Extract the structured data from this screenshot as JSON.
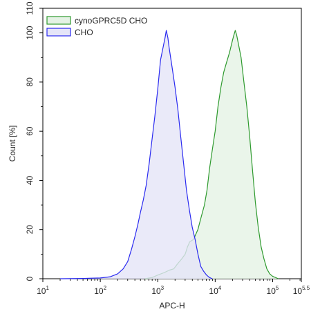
{
  "chart_data": {
    "type": "area",
    "title": "",
    "xlabel": "APC-H",
    "ylabel": "Count [%]",
    "x_scale": "log10",
    "xlim": [
      10,
      316227.77
    ],
    "ylim": [
      0,
      110
    ],
    "x_ticks": [
      {
        "base": "10",
        "exp": "1"
      },
      {
        "base": "10",
        "exp": "2"
      },
      {
        "base": "10",
        "exp": "3"
      },
      {
        "base": "10",
        "exp": "4"
      },
      {
        "base": "10",
        "exp": "5"
      },
      {
        "base": "10",
        "exp": "5.5"
      }
    ],
    "y_ticks": [
      "0",
      "20",
      "40",
      "60",
      "80",
      "100",
      "110"
    ],
    "grid": false,
    "legend_position": "top-left",
    "series": [
      {
        "name": "cynoGPRC5D CHO",
        "color": "#2e9a2e",
        "fill": "#e5f2e5",
        "points": [
          [
            600,
            0
          ],
          [
            800,
            0.5
          ],
          [
            1000,
            1.5
          ],
          [
            1300,
            2.5
          ],
          [
            1600,
            3.5
          ],
          [
            1900,
            4
          ],
          [
            2200,
            6
          ],
          [
            2600,
            8
          ],
          [
            3000,
            10
          ],
          [
            3300,
            13
          ],
          [
            3600,
            15
          ],
          [
            4200,
            16
          ],
          [
            5000,
            20
          ],
          [
            5700,
            25
          ],
          [
            6500,
            30
          ],
          [
            7200,
            36
          ],
          [
            8000,
            45
          ],
          [
            9000,
            53
          ],
          [
            10000,
            60
          ],
          [
            11200,
            70
          ],
          [
            12600,
            78
          ],
          [
            14100,
            84
          ],
          [
            15800,
            88
          ],
          [
            17800,
            92
          ],
          [
            20000,
            97
          ],
          [
            21100,
            99
          ],
          [
            22400,
            101
          ],
          [
            23700,
            99
          ],
          [
            25100,
            96
          ],
          [
            28200,
            90
          ],
          [
            31600,
            80
          ],
          [
            35500,
            70
          ],
          [
            39800,
            58
          ],
          [
            44700,
            44
          ],
          [
            50100,
            31
          ],
          [
            56200,
            21
          ],
          [
            63100,
            13
          ],
          [
            70800,
            8
          ],
          [
            79400,
            4
          ],
          [
            89100,
            2
          ],
          [
            100000,
            1
          ],
          [
            112000,
            0.5
          ],
          [
            125900,
            0
          ]
        ]
      },
      {
        "name": "CHO",
        "color": "#2a2af0",
        "fill": "#e5e5f8",
        "points": [
          [
            20,
            0
          ],
          [
            50,
            0.1
          ],
          [
            100,
            0.3
          ],
          [
            150,
            0.8
          ],
          [
            200,
            2
          ],
          [
            250,
            4
          ],
          [
            300,
            7
          ],
          [
            350,
            12
          ],
          [
            400,
            17
          ],
          [
            450,
            22
          ],
          [
            500,
            27
          ],
          [
            560,
            32
          ],
          [
            630,
            38
          ],
          [
            710,
            47
          ],
          [
            790,
            56
          ],
          [
            890,
            66
          ],
          [
            1000,
            77
          ],
          [
            1120,
            89
          ],
          [
            1260,
            95
          ],
          [
            1340,
            98
          ],
          [
            1410,
            101
          ],
          [
            1500,
            98
          ],
          [
            1580,
            94
          ],
          [
            1780,
            86
          ],
          [
            2000,
            78
          ],
          [
            2240,
            69
          ],
          [
            2510,
            58
          ],
          [
            2820,
            47
          ],
          [
            3160,
            36
          ],
          [
            3550,
            28
          ],
          [
            3980,
            21
          ],
          [
            4470,
            16
          ],
          [
            5010,
            10
          ],
          [
            5620,
            5
          ],
          [
            6310,
            3
          ],
          [
            7080,
            1.5
          ],
          [
            7940,
            0.5
          ],
          [
            8910,
            0
          ]
        ]
      }
    ]
  }
}
